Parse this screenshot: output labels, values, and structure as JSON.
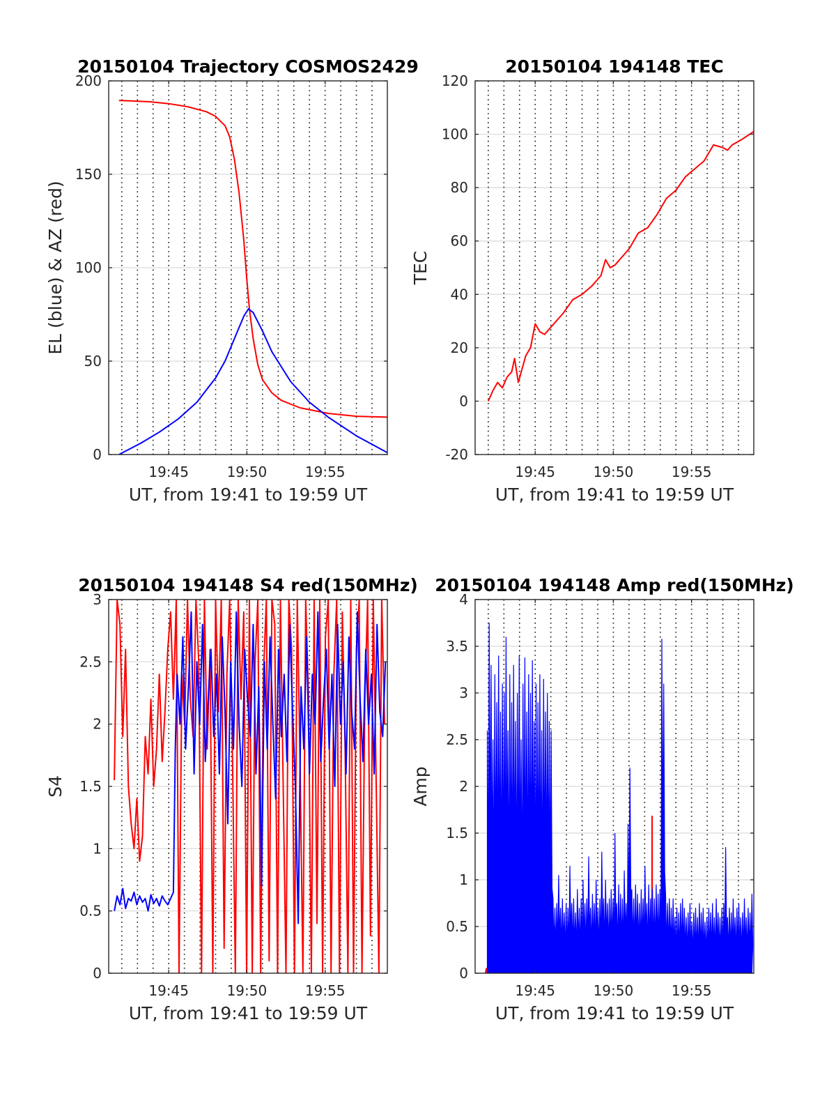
{
  "colors": {
    "red": "#ff0000",
    "blue": "#0000ff"
  },
  "chart_data": [
    {
      "type": "line",
      "title": "20150104 Trajectory COSMOS2429",
      "xlabel": "UT, from 19:41 to 19:59 UT",
      "ylabel": "EL (blue) & AZ (red)",
      "xlim": [
        19.686,
        19.983
      ],
      "ylim": [
        0,
        200
      ],
      "xticks": [
        19.75,
        19.8333,
        19.9167
      ],
      "xtick_labels": [
        "19:45",
        "19:50",
        "19:55"
      ],
      "yticks": [
        0,
        50,
        100,
        150,
        200
      ],
      "ytick_labels": [
        "0",
        "50",
        "100",
        "150",
        "200"
      ],
      "grid": "on",
      "series": [
        {
          "color": "red",
          "x": [
            19.697,
            19.71,
            19.73,
            19.75,
            19.77,
            19.79,
            19.8,
            19.81,
            19.815,
            19.82,
            19.825,
            19.83,
            19.833,
            19.836,
            19.84,
            19.845,
            19.85,
            19.86,
            19.87,
            19.89,
            19.92,
            19.95,
            19.983
          ],
          "values": [
            189.5,
            189.3,
            188.8,
            187.8,
            186.2,
            183.5,
            181,
            176,
            170,
            158,
            140,
            115,
            95,
            78,
            62,
            48,
            40,
            33,
            29,
            25,
            22,
            20.5,
            20
          ]
        },
        {
          "color": "blue",
          "x": [
            19.697,
            19.72,
            19.74,
            19.76,
            19.78,
            19.8,
            19.81,
            19.82,
            19.83,
            19.835,
            19.84,
            19.85,
            19.86,
            19.88,
            19.9,
            19.92,
            19.95,
            19.983
          ],
          "values": [
            0,
            6,
            12,
            19,
            28,
            41,
            50,
            62,
            74,
            78,
            76,
            66,
            55,
            39,
            28,
            20,
            10,
            1
          ]
        }
      ]
    },
    {
      "type": "line",
      "title": "20150104 194148 TEC",
      "xlabel": "UT, from 19:41 to 19:59 UT",
      "ylabel": "TEC",
      "xlim": [
        19.686,
        19.983
      ],
      "ylim": [
        -20,
        120
      ],
      "xticks": [
        19.75,
        19.8333,
        19.9167
      ],
      "xtick_labels": [
        "19:45",
        "19:50",
        "19:55"
      ],
      "yticks": [
        -20,
        0,
        20,
        40,
        60,
        80,
        100,
        120
      ],
      "ytick_labels": [
        "-20",
        "0",
        "20",
        "40",
        "60",
        "80",
        "100",
        "120"
      ],
      "grid": "on",
      "series": [
        {
          "color": "red",
          "x": [
            19.7,
            19.705,
            19.71,
            19.715,
            19.72,
            19.725,
            19.728,
            19.732,
            19.736,
            19.74,
            19.745,
            19.75,
            19.755,
            19.76,
            19.77,
            19.78,
            19.79,
            19.8,
            19.81,
            19.82,
            19.825,
            19.83,
            19.835,
            19.84,
            19.85,
            19.86,
            19.87,
            19.88,
            19.89,
            19.9,
            19.91,
            19.92,
            19.93,
            19.94,
            19.95,
            19.955,
            19.96,
            19.97,
            19.983
          ],
          "values": [
            0,
            4,
            7,
            5,
            9,
            11,
            16,
            7,
            12,
            17,
            20,
            29,
            26,
            25,
            29,
            33,
            38,
            40,
            43,
            47,
            53,
            50,
            51,
            53,
            57,
            63,
            65,
            70,
            76,
            79,
            84,
            87,
            90,
            96,
            95,
            94,
            96,
            98,
            101
          ]
        }
      ]
    },
    {
      "type": "line",
      "title": "20150104 194148 S4 red(150MHz)",
      "xlabel": "UT, from 19:41 to 19:59 UT",
      "ylabel": "S4",
      "xlim": [
        19.686,
        19.983
      ],
      "ylim": [
        0,
        3
      ],
      "xticks": [
        19.75,
        19.8333,
        19.9167
      ],
      "xtick_labels": [
        "19:45",
        "19:50",
        "19:55"
      ],
      "yticks": [
        0,
        0.5,
        1,
        1.5,
        2,
        2.5,
        3
      ],
      "ytick_labels": [
        "0",
        "0.5",
        "1",
        "1.5",
        "2",
        "2.5",
        "3"
      ],
      "grid": "on",
      "series": [
        {
          "color": "red",
          "x": [
            19.692,
            19.695,
            19.698,
            19.701,
            19.704,
            19.707,
            19.71,
            19.713,
            19.716,
            19.719,
            19.722,
            19.725,
            19.728,
            19.731,
            19.734,
            19.737,
            19.74,
            19.743,
            19.746,
            19.749,
            19.752,
            19.755,
            19.758,
            19.761,
            19.764,
            19.767,
            19.77,
            19.773,
            19.776,
            19.779,
            19.782,
            19.785,
            19.788,
            19.791,
            19.794,
            19.797,
            19.8,
            19.803,
            19.806,
            19.809,
            19.812,
            19.815,
            19.818,
            19.821,
            19.824,
            19.827,
            19.83,
            19.833,
            19.836,
            19.839,
            19.842,
            19.845,
            19.848,
            19.851,
            19.854,
            19.857,
            19.86,
            19.863,
            19.866,
            19.869,
            19.872,
            19.875,
            19.878,
            19.881,
            19.884,
            19.887,
            19.89,
            19.893,
            19.896,
            19.899,
            19.902,
            19.905,
            19.908,
            19.911,
            19.914,
            19.917,
            19.92,
            19.923,
            19.926,
            19.929,
            19.932,
            19.935,
            19.938,
            19.941,
            19.944,
            19.947,
            19.95,
            19.953,
            19.956,
            19.959,
            19.962,
            19.965,
            19.968,
            19.971,
            19.974,
            19.977,
            19.98
          ],
          "values": [
            1.55,
            3,
            2.8,
            1.9,
            2.6,
            1.5,
            1.2,
            1.0,
            1.4,
            0.9,
            1.1,
            1.9,
            1.6,
            2.2,
            1.5,
            1.8,
            2.4,
            1.7,
            2.1,
            2.6,
            2.9,
            2.2,
            3,
            0,
            2.4,
            2.0,
            3,
            2.2,
            1.9,
            3,
            2.5,
            0,
            3,
            1.8,
            2.6,
            0,
            3,
            2.1,
            3,
            0.2,
            2.4,
            3,
            1.7,
            0,
            3,
            2.2,
            2.9,
            0,
            3,
            0,
            2.5,
            3,
            0,
            2.4,
            3,
            0.1,
            3,
            2.8,
            0,
            3,
            1.5,
            0,
            3,
            2.6,
            0,
            3,
            1.7,
            0,
            3,
            2.2,
            0,
            3,
            0.4,
            3,
            0,
            2.7,
            3,
            0,
            2.4,
            3,
            0,
            2.9,
            1.8,
            0,
            3,
            0,
            2.6,
            3,
            0,
            2.2,
            3,
            0.3,
            3,
            1.6,
            0,
            3,
            2.0
          ]
        },
        {
          "color": "blue",
          "x": [
            19.692,
            19.695,
            19.698,
            19.701,
            19.704,
            19.707,
            19.71,
            19.713,
            19.716,
            19.719,
            19.722,
            19.725,
            19.728,
            19.731,
            19.734,
            19.737,
            19.74,
            19.743,
            19.746,
            19.749,
            19.752,
            19.755,
            19.757,
            19.759,
            19.762,
            19.765,
            19.768,
            19.771,
            19.774,
            19.777,
            19.78,
            19.783,
            19.786,
            19.789,
            19.792,
            19.795,
            19.798,
            19.801,
            19.804,
            19.807,
            19.81,
            19.813,
            19.816,
            19.819,
            19.822,
            19.825,
            19.828,
            19.831,
            19.834,
            19.837,
            19.84,
            19.843,
            19.846,
            19.849,
            19.852,
            19.855,
            19.858,
            19.861,
            19.864,
            19.867,
            19.87,
            19.873,
            19.876,
            19.879,
            19.882,
            19.885,
            19.888,
            19.891,
            19.894,
            19.897,
            19.9,
            19.903,
            19.906,
            19.909,
            19.912,
            19.915,
            19.918,
            19.921,
            19.924,
            19.927,
            19.93,
            19.933,
            19.936,
            19.939,
            19.942,
            19.945,
            19.948,
            19.951,
            19.954,
            19.957,
            19.96,
            19.963,
            19.966,
            19.969,
            19.972,
            19.975,
            19.978,
            19.981
          ],
          "values": [
            0.5,
            0.62,
            0.55,
            0.68,
            0.52,
            0.6,
            0.58,
            0.65,
            0.55,
            0.62,
            0.57,
            0.6,
            0.5,
            0.63,
            0.56,
            0.6,
            0.54,
            0.62,
            0.58,
            0.55,
            0.6,
            0.65,
            1.8,
            2.4,
            2.0,
            2.7,
            1.8,
            2.3,
            2.9,
            1.6,
            2.5,
            2.0,
            2.8,
            1.7,
            2.2,
            2.6,
            1.9,
            2.4,
            1.6,
            2.7,
            2.1,
            1.2,
            2.5,
            1.8,
            2.9,
            2.0,
            1.5,
            2.6,
            2.2,
            1.9,
            2.8,
            1.6,
            2.3,
            0.7,
            2.5,
            1.8,
            2.7,
            2.0,
            1.4,
            2.6,
            1.9,
            2.4,
            1.7,
            2.8,
            2.1,
            1.5,
            0.4,
            2.3,
            1.8,
            2.7,
            1.6,
            2.4,
            2.0,
            2.9,
            1.7,
            2.2,
            2.6,
            1.8,
            2.4,
            1.5,
            2.8,
            2.0,
            2.5,
            1.6,
            2.7,
            2.1,
            1.8,
            2.9,
            2.2,
            1.7,
            2.6,
            2.0,
            2.4,
            1.6,
            2.8,
            2.1,
            1.9,
            2.5
          ]
        }
      ]
    },
    {
      "type": "line",
      "title": "20150104 194148 Amp red(150MHz)",
      "xlabel": "UT, from 19:41 to 19:59 UT",
      "ylabel": "Amp",
      "xlim": [
        19.686,
        19.983
      ],
      "ylim": [
        0,
        4
      ],
      "xticks": [
        19.75,
        19.8333,
        19.9167
      ],
      "xtick_labels": [
        "19:45",
        "19:50",
        "19:55"
      ],
      "yticks": [
        0,
        0.5,
        1,
        1.5,
        2,
        2.5,
        3,
        3.5,
        4
      ],
      "ytick_labels": [
        "0",
        "0.5",
        "1",
        "1.5",
        "2",
        "2.5",
        "3",
        "3.5",
        "4"
      ],
      "grid": "on",
      "series": [
        {
          "color": "red",
          "x": [
            19.697,
            19.698,
            19.699,
            19.8744,
            19.8746,
            19.8748
          ],
          "values": [
            0,
            0.05,
            0,
            0,
            1.68,
            0
          ]
        },
        {
          "color": "blue",
          "envelope": true,
          "x": [
            19.699,
            19.701,
            19.703,
            19.705,
            19.707,
            19.709,
            19.711,
            19.713,
            19.715,
            19.717,
            19.719,
            19.721,
            19.723,
            19.725,
            19.727,
            19.729,
            19.731,
            19.733,
            19.735,
            19.737,
            19.739,
            19.741,
            19.743,
            19.745,
            19.747,
            19.749,
            19.751,
            19.753,
            19.755,
            19.757,
            19.759,
            19.761,
            19.763,
            19.765,
            19.767,
            19.769,
            19.771,
            19.773,
            19.775,
            19.777,
            19.779,
            19.781,
            19.783,
            19.785,
            19.787,
            19.789,
            19.791,
            19.793,
            19.795,
            19.797,
            19.799,
            19.801,
            19.803,
            19.805,
            19.807,
            19.809,
            19.811,
            19.813,
            19.815,
            19.817,
            19.819,
            19.821,
            19.823,
            19.825,
            19.827,
            19.829,
            19.831,
            19.833,
            19.835,
            19.837,
            19.839,
            19.841,
            19.843,
            19.845,
            19.847,
            19.849,
            19.851,
            19.853,
            19.855,
            19.857,
            19.859,
            19.861,
            19.863,
            19.865,
            19.867,
            19.869,
            19.871,
            19.873,
            19.875,
            19.877,
            19.879,
            19.881,
            19.883,
            19.885,
            19.887,
            19.889,
            19.891,
            19.893,
            19.895,
            19.897,
            19.899,
            19.901,
            19.903,
            19.905,
            19.907,
            19.909,
            19.911,
            19.913,
            19.915,
            19.917,
            19.919,
            19.921,
            19.923,
            19.925,
            19.927,
            19.929,
            19.931,
            19.933,
            19.935,
            19.937,
            19.939,
            19.941,
            19.943,
            19.945,
            19.947,
            19.949,
            19.951,
            19.953,
            19.955,
            19.957,
            19.959,
            19.961,
            19.963,
            19.965,
            19.967,
            19.969,
            19.971,
            19.973,
            19.975,
            19.977,
            19.979,
            19.981
          ],
          "values": [
            2.6,
            3.75,
            3.3,
            2.5,
            3.2,
            2.9,
            3.4,
            2.8,
            3.1,
            3.0,
            3.6,
            2.6,
            3.2,
            2.9,
            3.3,
            2.7,
            3.0,
            3.4,
            2.5,
            3.1,
            3.38,
            2.8,
            3.2,
            3.0,
            3.35,
            2.7,
            3.1,
            2.9,
            3.2,
            2.6,
            3.15,
            2.8,
            3.0,
            2.7,
            2.6,
            0.8,
            0.7,
            0.75,
            1.05,
            0.7,
            0.8,
            0.65,
            0.75,
            0.7,
            1.15,
            0.75,
            0.8,
            0.65,
            0.9,
            0.7,
            0.8,
            1.0,
            0.75,
            0.8,
            1.25,
            0.7,
            0.85,
            0.75,
            1.0,
            0.7,
            0.8,
            1.3,
            0.8,
            1.0,
            0.75,
            0.8,
            0.9,
            0.8,
            1.5,
            0.75,
            0.95,
            0.85,
            0.8,
            1.1,
            0.75,
            1.6,
            2.2,
            0.9,
            0.8,
            0.95,
            0.85,
            0.75,
            0.9,
            0.8,
            1.15,
            0.75,
            0.95,
            0.8,
            0.9,
            0.8,
            0.95,
            0.85,
            0.9,
            3.58,
            3.1,
            0.85,
            0.75,
            0.8,
            0.7,
            0.8,
            0.6,
            0.7,
            0.65,
            0.75,
            0.8,
            0.7,
            0.6,
            0.65,
            0.75,
            0.55,
            0.65,
            0.7,
            0.6,
            0.75,
            0.65,
            0.7,
            0.55,
            0.6,
            0.7,
            0.65,
            0.75,
            0.6,
            0.8,
            0.65,
            0.6,
            0.7,
            0.75,
            1.35,
            0.6,
            0.7,
            0.65,
            0.8,
            0.6,
            0.7,
            0.75,
            0.6,
            0.65,
            0.8,
            0.6,
            0.7,
            0.65,
            0.85
          ]
        }
      ]
    }
  ]
}
